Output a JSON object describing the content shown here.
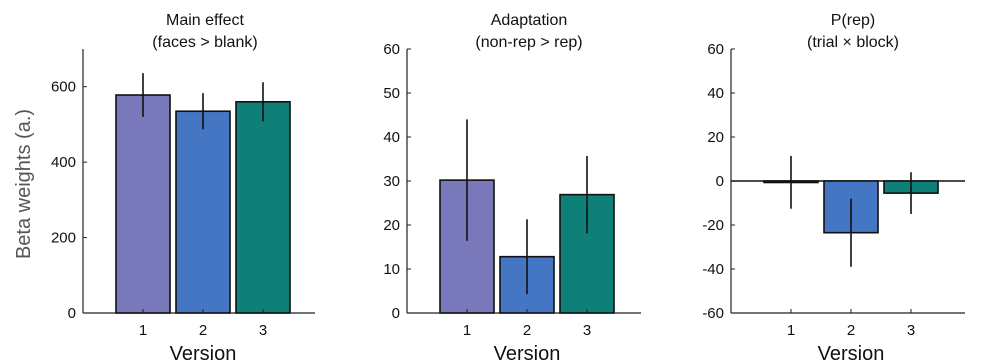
{
  "figure": {
    "ylabel": "Beta weights (a.)"
  },
  "chart_data": [
    {
      "type": "bar",
      "title": [
        "Main effect",
        "(faces > blank)"
      ],
      "xlabel": "Version",
      "categories": [
        "1",
        "2",
        "3"
      ],
      "values": [
        578,
        535,
        560
      ],
      "errors": [
        58,
        48,
        52
      ],
      "ylim": [
        0,
        700
      ],
      "yticks": [
        0,
        200,
        400,
        600
      ],
      "colors": [
        "#7878bb",
        "#4476c3",
        "#0f7f7a"
      ],
      "grid": false
    },
    {
      "type": "bar",
      "title": [
        "Adaptation",
        "(non-rep > rep)"
      ],
      "xlabel": "Version",
      "categories": [
        "1",
        "2",
        "3"
      ],
      "values": [
        30.2,
        12.8,
        26.9
      ],
      "errors": [
        13.8,
        8.5,
        8.8
      ],
      "ylim": [
        0,
        60
      ],
      "yticks": [
        0,
        10,
        20,
        30,
        40,
        50,
        60
      ],
      "colors": [
        "#7878bb",
        "#4476c3",
        "#0f7f7a"
      ],
      "grid": false
    },
    {
      "type": "bar",
      "title": [
        "P(rep)",
        "(trial × block)"
      ],
      "xlabel": "Version",
      "categories": [
        "1",
        "2",
        "3"
      ],
      "values": [
        -0.6,
        -23.5,
        -5.5
      ],
      "errors": [
        12.0,
        15.5,
        9.5
      ],
      "ylim": [
        -60,
        60
      ],
      "yticks": [
        -60,
        -40,
        -20,
        0,
        20,
        40,
        60
      ],
      "colors": [
        "#7878bb",
        "#4476c3",
        "#0f7f7a"
      ],
      "grid": false
    }
  ]
}
